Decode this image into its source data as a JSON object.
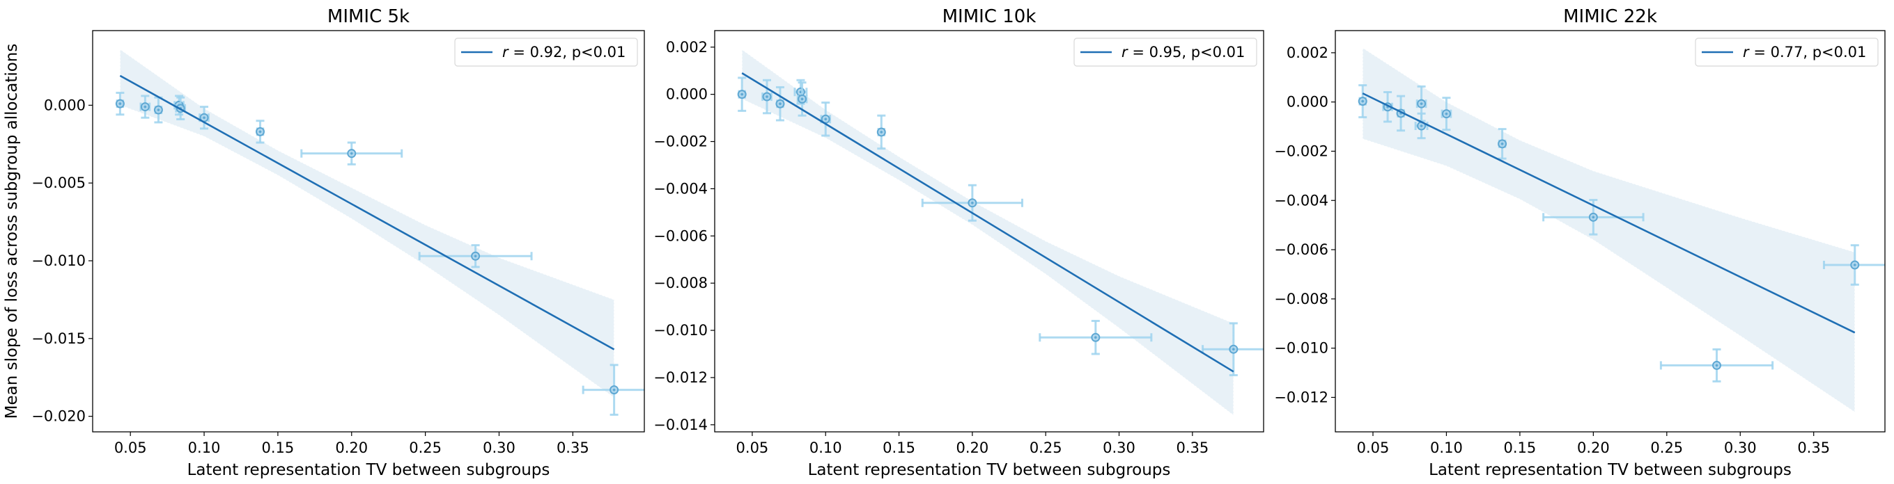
{
  "colors": {
    "line": "#1f6fb4",
    "band": "#1f77b4",
    "marker": "#5fa8d3",
    "errorbar": "#9fd3ee"
  },
  "chart_data": [
    {
      "type": "scatter",
      "title": "MIMIC 5k",
      "xlabel": "Latent representation TV between subgroups",
      "ylabel": "Mean slope of loss across subgroup allocations",
      "xlim": [
        0.0244,
        0.3985
      ],
      "ylim": [
        -0.021,
        0.0048
      ],
      "xticks": [
        "0.05",
        "0.10",
        "0.15",
        "0.20",
        "0.25",
        "0.30",
        "0.35"
      ],
      "yticks": [
        "0.000",
        "−0.005",
        "−0.010",
        "−0.015",
        "−0.020"
      ],
      "ytick_values": [
        0,
        -0.005,
        -0.01,
        -0.015,
        -0.02
      ],
      "legend": {
        "r_symbol": "r",
        "text": " = 0.92, p<0.01",
        "placement": "upper-right"
      },
      "points": [
        {
          "x": 0.043,
          "y": 0.0001,
          "xerr": 0.002,
          "yerr": 0.0007
        },
        {
          "x": 0.06,
          "y": -0.0001,
          "xerr": 0.003,
          "yerr": 0.0007
        },
        {
          "x": 0.069,
          "y": -0.0003,
          "xerr": 0.002,
          "yerr": 0.0008
        },
        {
          "x": 0.083,
          "y": 0.0,
          "xerr": 0.003,
          "yerr": 0.0006
        },
        {
          "x": 0.084,
          "y": -0.0002,
          "xerr": 0.003,
          "yerr": 0.0007
        },
        {
          "x": 0.1,
          "y": -0.0008,
          "xerr": 0.003,
          "yerr": 0.0007
        },
        {
          "x": 0.138,
          "y": -0.0017,
          "xerr": 0.002,
          "yerr": 0.0007
        },
        {
          "x": 0.2,
          "y": -0.0031,
          "xerr": 0.034,
          "yerr": 0.0007
        },
        {
          "x": 0.284,
          "y": -0.0097,
          "xerr": 0.038,
          "yerr": 0.0007
        },
        {
          "x": 0.378,
          "y": -0.0183,
          "xerr": 0.021,
          "yerr": 0.0016
        }
      ],
      "fit": {
        "x": [
          0.043,
          0.378
        ],
        "y": [
          0.0019,
          -0.0157
        ]
      },
      "ci": {
        "x": [
          0.043,
          0.1,
          0.15,
          0.2,
          0.25,
          0.3,
          0.378
        ],
        "lower": [
          0.0,
          -0.002,
          -0.0045,
          -0.0073,
          -0.0103,
          -0.0135,
          -0.0188
        ],
        "upper": [
          0.0036,
          -0.0002,
          -0.0029,
          -0.0053,
          -0.0077,
          -0.0098,
          -0.0125
        ]
      }
    },
    {
      "type": "scatter",
      "title": "MIMIC 10k",
      "xlabel": "Latent representation TV between subgroups",
      "ylabel": "",
      "xlim": [
        0.0244,
        0.3985
      ],
      "ylim": [
        -0.0143,
        0.0027
      ],
      "xticks": [
        "0.05",
        "0.10",
        "0.15",
        "0.20",
        "0.25",
        "0.30",
        "0.35"
      ],
      "yticks": [
        "0.002",
        "0.000",
        "−0.002",
        "−0.004",
        "−0.006",
        "−0.008",
        "−0.010",
        "−0.012",
        "−0.014"
      ],
      "ytick_values": [
        0.002,
        0,
        -0.002,
        -0.004,
        -0.006,
        -0.008,
        -0.01,
        -0.012,
        -0.014
      ],
      "legend": {
        "r_symbol": "r",
        "text": " = 0.95, p<0.01",
        "placement": "upper-right"
      },
      "points": [
        {
          "x": 0.043,
          "y": 0.0,
          "xerr": 0.002,
          "yerr": 0.0007
        },
        {
          "x": 0.06,
          "y": -0.0001,
          "xerr": 0.003,
          "yerr": 0.0007
        },
        {
          "x": 0.069,
          "y": -0.0004,
          "xerr": 0.002,
          "yerr": 0.0007
        },
        {
          "x": 0.083,
          "y": 0.0001,
          "xerr": 0.004,
          "yerr": 0.0005
        },
        {
          "x": 0.084,
          "y": -0.0002,
          "xerr": 0.003,
          "yerr": 0.0007
        },
        {
          "x": 0.1,
          "y": -0.00105,
          "xerr": 0.003,
          "yerr": 0.0007
        },
        {
          "x": 0.138,
          "y": -0.0016,
          "xerr": 0.002,
          "yerr": 0.0007
        },
        {
          "x": 0.2,
          "y": -0.0046,
          "xerr": 0.034,
          "yerr": 0.00075
        },
        {
          "x": 0.284,
          "y": -0.0103,
          "xerr": 0.038,
          "yerr": 0.0007
        },
        {
          "x": 0.378,
          "y": -0.0108,
          "xerr": 0.021,
          "yerr": 0.0011
        }
      ],
      "fit": {
        "x": [
          0.043,
          0.378
        ],
        "y": [
          0.0009,
          -0.01175
        ]
      },
      "ci": {
        "x": [
          0.043,
          0.1,
          0.15,
          0.2,
          0.25,
          0.3,
          0.378
        ],
        "lower": [
          -0.0002,
          -0.00185,
          -0.00364,
          -0.00553,
          -0.00762,
          -0.0099,
          -0.0136
        ],
        "upper": [
          0.0019,
          -0.00065,
          -0.00264,
          -0.00453,
          -0.00622,
          -0.0077,
          -0.0097
        ]
      }
    },
    {
      "type": "scatter",
      "title": "MIMIC 22k",
      "xlabel": "Latent representation TV between subgroups",
      "ylabel": "",
      "xlim": [
        0.0244,
        0.3985
      ],
      "ylim": [
        -0.0134,
        0.0029
      ],
      "xticks": [
        "0.05",
        "0.10",
        "0.15",
        "0.20",
        "0.25",
        "0.30",
        "0.35"
      ],
      "yticks": [
        "0.002",
        "0.000",
        "−0.002",
        "−0.004",
        "−0.006",
        "−0.008",
        "−0.010",
        "−0.012"
      ],
      "ytick_values": [
        0.002,
        0,
        -0.002,
        -0.004,
        -0.006,
        -0.008,
        -0.01,
        -0.012
      ],
      "legend": {
        "r_symbol": "r",
        "text": " = 0.77, p<0.01",
        "placement": "upper-right"
      },
      "points": [
        {
          "x": 0.043,
          "y": 3e-05,
          "xerr": 0.002,
          "yerr": 0.00065
        },
        {
          "x": 0.06,
          "y": -0.0002,
          "xerr": 0.003,
          "yerr": 0.0006
        },
        {
          "x": 0.069,
          "y": -0.00046,
          "xerr": 0.002,
          "yerr": 0.0007
        },
        {
          "x": 0.083,
          "y": -7e-05,
          "xerr": 0.003,
          "yerr": 0.0007
        },
        {
          "x": 0.083,
          "y": -0.00097,
          "xerr": 0.004,
          "yerr": 0.0005
        },
        {
          "x": 0.1,
          "y": -0.00048,
          "xerr": 0.003,
          "yerr": 0.00065
        },
        {
          "x": 0.138,
          "y": -0.0017,
          "xerr": 0.002,
          "yerr": 0.0006
        },
        {
          "x": 0.2,
          "y": -0.00468,
          "xerr": 0.034,
          "yerr": 0.0007
        },
        {
          "x": 0.284,
          "y": -0.0107,
          "xerr": 0.038,
          "yerr": 0.00065
        },
        {
          "x": 0.378,
          "y": -0.00662,
          "xerr": 0.021,
          "yerr": 0.0008
        }
      ],
      "fit": {
        "x": [
          0.043,
          0.378
        ],
        "y": [
          0.00035,
          -0.00937
        ]
      },
      "ci": {
        "x": [
          0.043,
          0.1,
          0.15,
          0.2,
          0.25,
          0.3,
          0.378
        ],
        "lower": [
          -0.0015,
          -0.0026,
          -0.00395,
          -0.0056,
          -0.00755,
          -0.0095,
          -0.0126
        ],
        "upper": [
          0.0022,
          0.0,
          -0.00155,
          -0.0028,
          -0.00375,
          -0.0047,
          -0.0061
        ]
      }
    }
  ]
}
